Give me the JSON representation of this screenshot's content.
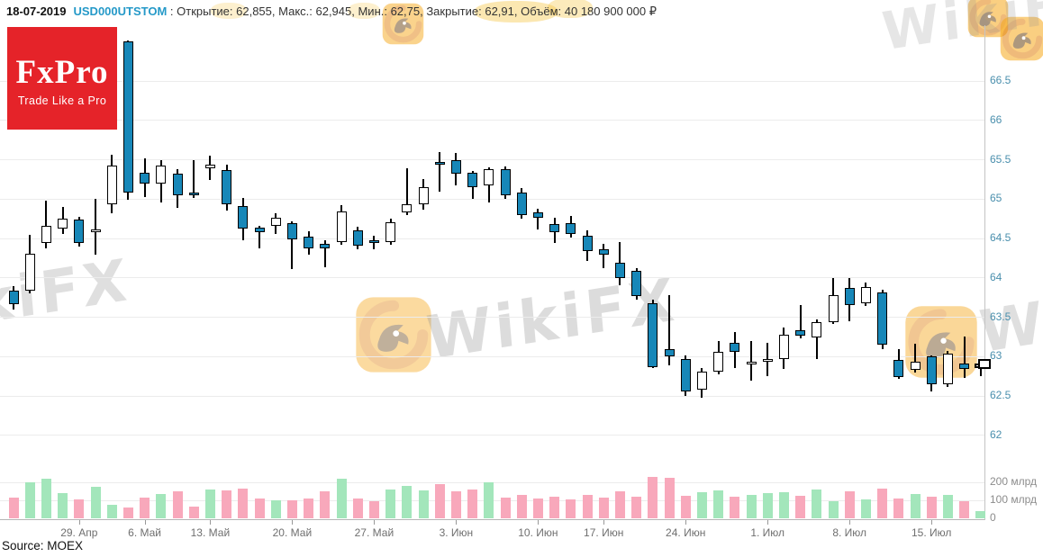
{
  "header": {
    "date": "18-07-2019",
    "ticker": "USD000UTSTOM",
    "separator": ":",
    "stats": [
      {
        "label": "Открытие",
        "value": "62,855"
      },
      {
        "label": "Макс.",
        "value": "62,945"
      },
      {
        "label": "Мин.",
        "value": "62,75"
      },
      {
        "label": "Закрытие",
        "value": "62,91"
      },
      {
        "label": "Объём",
        "value": "40 180 900 000 ₽"
      }
    ]
  },
  "logo": {
    "title": "FxPro",
    "subtitle": "Trade Like a Pro",
    "bg_color": "#e52329"
  },
  "watermark": {
    "text": "WikiFX",
    "logo": "wikifx-eagle-logo"
  },
  "footer": {
    "source": "Source: MOEX"
  },
  "colors": {
    "bear_fill": "#1787b8",
    "bull_fill": "#ffffff",
    "candle_outline": "#000000",
    "vol_up": "#a3e6bb",
    "vol_down": "#f8a8bb",
    "grid": "#ececec",
    "axis": "#b5b5b5",
    "y_label": "#4a8fad",
    "x_label": "#6f6f6f",
    "vol_label": "#8c8c8c",
    "ticker": "#2599c8",
    "logo_bg": "#e52329"
  },
  "chart_data": {
    "type": "candlestick",
    "title": "USD000UTSTOM daily candles with volume",
    "price_axis": {
      "min": 62,
      "max": 66.5,
      "step": 0.5,
      "tick_labels": [
        "66.5",
        "66",
        "65.5",
        "65",
        "64.5",
        "64",
        "63.5",
        "63",
        "62.5",
        "62"
      ]
    },
    "volume_axis": {
      "ticks": [
        {
          "label": "200 млрд",
          "value": 200
        },
        {
          "label": "100 млрд",
          "value": 100
        },
        {
          "label": "0",
          "value": 0
        }
      ]
    },
    "x_ticks": [
      {
        "label": "29. Апр",
        "index": 4
      },
      {
        "label": "6. Май",
        "index": 8
      },
      {
        "label": "13. Май",
        "index": 12
      },
      {
        "label": "20. Май",
        "index": 17
      },
      {
        "label": "27. Май",
        "index": 22
      },
      {
        "label": "3. Июн",
        "index": 27
      },
      {
        "label": "10. Июн",
        "index": 32
      },
      {
        "label": "17. Июн",
        "index": 36
      },
      {
        "label": "24. Июн",
        "index": 41
      },
      {
        "label": "1. Июл",
        "index": 46
      },
      {
        "label": "8. Июл",
        "index": 51
      },
      {
        "label": "15. Июл",
        "index": 56
      }
    ],
    "last_price_marker": 62.91,
    "candles": [
      {
        "d": "23.04",
        "o": 63.84,
        "h": 63.9,
        "l": 63.6,
        "c": 63.67,
        "v": 115
      },
      {
        "d": "24.04",
        "o": 63.84,
        "h": 64.55,
        "l": 63.8,
        "c": 64.31,
        "v": 200
      },
      {
        "d": "25.04",
        "o": 64.44,
        "h": 64.98,
        "l": 64.38,
        "c": 64.66,
        "v": 220
      },
      {
        "d": "26.04",
        "o": 64.63,
        "h": 64.9,
        "l": 64.56,
        "c": 64.75,
        "v": 140
      },
      {
        "d": "29.04",
        "o": 64.74,
        "h": 64.78,
        "l": 64.4,
        "c": 64.44,
        "v": 105
      },
      {
        "d": "30.04",
        "o": 64.6,
        "h": 65.0,
        "l": 64.3,
        "c": 64.62,
        "v": 175
      },
      {
        "d": "02.05",
        "o": 64.93,
        "h": 65.56,
        "l": 64.82,
        "c": 65.43,
        "v": 75
      },
      {
        "d": "03.05",
        "o": 67.0,
        "h": 67.02,
        "l": 64.99,
        "c": 65.08,
        "v": 60
      },
      {
        "d": "06.05",
        "o": 65.33,
        "h": 65.52,
        "l": 65.03,
        "c": 65.2,
        "v": 115
      },
      {
        "d": "07.05",
        "o": 65.2,
        "h": 65.49,
        "l": 64.96,
        "c": 65.43,
        "v": 135
      },
      {
        "d": "08.05",
        "o": 65.32,
        "h": 65.38,
        "l": 64.89,
        "c": 65.05,
        "v": 150
      },
      {
        "d": "10.05",
        "o": 65.08,
        "h": 65.5,
        "l": 65.02,
        "c": 65.06,
        "v": 65
      },
      {
        "d": "13.05",
        "o": 65.39,
        "h": 65.55,
        "l": 65.24,
        "c": 65.44,
        "v": 160
      },
      {
        "d": "14.05",
        "o": 65.37,
        "h": 65.44,
        "l": 64.86,
        "c": 64.93,
        "v": 155
      },
      {
        "d": "15.05",
        "o": 64.91,
        "h": 65.02,
        "l": 64.48,
        "c": 64.63,
        "v": 165
      },
      {
        "d": "16.05",
        "o": 64.64,
        "h": 64.66,
        "l": 64.38,
        "c": 64.58,
        "v": 110
      },
      {
        "d": "17.05",
        "o": 64.66,
        "h": 64.82,
        "l": 64.56,
        "c": 64.76,
        "v": 100
      },
      {
        "d": "20.05",
        "o": 64.69,
        "h": 64.72,
        "l": 64.11,
        "c": 64.49,
        "v": 100
      },
      {
        "d": "21.05",
        "o": 64.52,
        "h": 64.59,
        "l": 64.3,
        "c": 64.38,
        "v": 110
      },
      {
        "d": "22.05",
        "o": 64.43,
        "h": 64.48,
        "l": 64.14,
        "c": 64.37,
        "v": 150
      },
      {
        "d": "23.05",
        "o": 64.46,
        "h": 64.92,
        "l": 64.42,
        "c": 64.84,
        "v": 220
      },
      {
        "d": "24.05",
        "o": 64.6,
        "h": 64.65,
        "l": 64.36,
        "c": 64.41,
        "v": 110
      },
      {
        "d": "27.05",
        "o": 64.48,
        "h": 64.54,
        "l": 64.36,
        "c": 64.44,
        "v": 95
      },
      {
        "d": "28.05",
        "o": 64.46,
        "h": 64.75,
        "l": 64.42,
        "c": 64.71,
        "v": 160
      },
      {
        "d": "29.05",
        "o": 64.83,
        "h": 65.39,
        "l": 64.8,
        "c": 64.94,
        "v": 180
      },
      {
        "d": "30.05",
        "o": 64.94,
        "h": 65.26,
        "l": 64.87,
        "c": 65.15,
        "v": 155
      },
      {
        "d": "31.05",
        "o": 65.47,
        "h": 65.6,
        "l": 65.1,
        "c": 65.44,
        "v": 190
      },
      {
        "d": "03.06",
        "o": 65.49,
        "h": 65.59,
        "l": 65.17,
        "c": 65.32,
        "v": 150
      },
      {
        "d": "04.06",
        "o": 65.34,
        "h": 65.36,
        "l": 65.0,
        "c": 65.15,
        "v": 160
      },
      {
        "d": "05.06",
        "o": 65.17,
        "h": 65.4,
        "l": 64.96,
        "c": 65.38,
        "v": 200
      },
      {
        "d": "06.06",
        "o": 65.38,
        "h": 65.42,
        "l": 65.0,
        "c": 65.05,
        "v": 115
      },
      {
        "d": "07.06",
        "o": 65.08,
        "h": 65.14,
        "l": 64.75,
        "c": 64.8,
        "v": 130
      },
      {
        "d": "10.06",
        "o": 64.83,
        "h": 64.88,
        "l": 64.61,
        "c": 64.76,
        "v": 110
      },
      {
        "d": "11.06",
        "o": 64.68,
        "h": 64.76,
        "l": 64.44,
        "c": 64.58,
        "v": 120
      },
      {
        "d": "13.06",
        "o": 64.7,
        "h": 64.79,
        "l": 64.51,
        "c": 64.56,
        "v": 105
      },
      {
        "d": "14.06",
        "o": 64.53,
        "h": 64.6,
        "l": 64.21,
        "c": 64.34,
        "v": 130
      },
      {
        "d": "17.06",
        "o": 64.36,
        "h": 64.43,
        "l": 64.12,
        "c": 64.29,
        "v": 115
      },
      {
        "d": "18.06",
        "o": 64.19,
        "h": 64.46,
        "l": 63.91,
        "c": 64.0,
        "v": 150
      },
      {
        "d": "19.06",
        "o": 64.09,
        "h": 64.12,
        "l": 63.72,
        "c": 63.77,
        "v": 120
      },
      {
        "d": "20.06",
        "o": 63.68,
        "h": 63.72,
        "l": 62.85,
        "c": 62.87,
        "v": 230
      },
      {
        "d": "21.06",
        "o": 63.1,
        "h": 63.78,
        "l": 62.89,
        "c": 63.0,
        "v": 225
      },
      {
        "d": "24.06",
        "o": 62.97,
        "h": 63.02,
        "l": 62.5,
        "c": 62.56,
        "v": 125
      },
      {
        "d": "25.06",
        "o": 62.58,
        "h": 62.86,
        "l": 62.48,
        "c": 62.81,
        "v": 145
      },
      {
        "d": "26.06",
        "o": 62.81,
        "h": 63.2,
        "l": 62.77,
        "c": 63.06,
        "v": 155
      },
      {
        "d": "27.06",
        "o": 63.17,
        "h": 63.31,
        "l": 62.86,
        "c": 63.06,
        "v": 120
      },
      {
        "d": "28.06",
        "o": 62.9,
        "h": 63.2,
        "l": 62.69,
        "c": 62.93,
        "v": 130
      },
      {
        "d": "01.07",
        "o": 62.93,
        "h": 63.18,
        "l": 62.75,
        "c": 62.97,
        "v": 140
      },
      {
        "d": "02.07",
        "o": 62.97,
        "h": 63.37,
        "l": 62.84,
        "c": 63.28,
        "v": 145
      },
      {
        "d": "03.07",
        "o": 63.34,
        "h": 63.66,
        "l": 63.23,
        "c": 63.27,
        "v": 125
      },
      {
        "d": "04.07",
        "o": 63.24,
        "h": 63.47,
        "l": 62.97,
        "c": 63.44,
        "v": 160
      },
      {
        "d": "05.07",
        "o": 63.44,
        "h": 64.0,
        "l": 63.42,
        "c": 63.78,
        "v": 95
      },
      {
        "d": "08.07",
        "o": 63.87,
        "h": 64.0,
        "l": 63.45,
        "c": 63.66,
        "v": 150
      },
      {
        "d": "09.07",
        "o": 63.68,
        "h": 63.94,
        "l": 63.64,
        "c": 63.88,
        "v": 105
      },
      {
        "d": "10.07",
        "o": 63.82,
        "h": 63.85,
        "l": 63.1,
        "c": 63.15,
        "v": 165
      },
      {
        "d": "11.07",
        "o": 62.96,
        "h": 63.1,
        "l": 62.72,
        "c": 62.74,
        "v": 110
      },
      {
        "d": "12.07",
        "o": 62.83,
        "h": 63.16,
        "l": 62.8,
        "c": 62.93,
        "v": 135
      },
      {
        "d": "15.07",
        "o": 63.0,
        "h": 63.02,
        "l": 62.56,
        "c": 62.65,
        "v": 120
      },
      {
        "d": "16.07",
        "o": 62.65,
        "h": 63.07,
        "l": 62.62,
        "c": 63.04,
        "v": 130
      },
      {
        "d": "17.07",
        "o": 62.91,
        "h": 63.25,
        "l": 62.73,
        "c": 62.84,
        "v": 95
      },
      {
        "d": "18.07",
        "o": 62.855,
        "h": 62.945,
        "l": 62.75,
        "c": 62.91,
        "v": 40
      }
    ]
  }
}
